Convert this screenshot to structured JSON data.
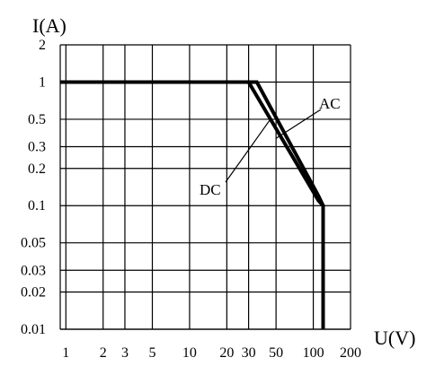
{
  "chart_data": {
    "type": "line",
    "title": "",
    "xlabel": "U(V)",
    "ylabel": "I(A)",
    "x_scale": "log",
    "y_scale": "log",
    "xlim": [
      0.9,
      200
    ],
    "ylim": [
      0.01,
      2
    ],
    "grid": true,
    "x_ticks": [
      1,
      2,
      3,
      5,
      10,
      20,
      30,
      50,
      100,
      200
    ],
    "x_tick_labels": [
      "1",
      "2",
      "3",
      "5",
      "10",
      "20",
      "30",
      "50",
      "100",
      "200"
    ],
    "y_ticks": [
      0.01,
      0.02,
      0.03,
      0.05,
      0.1,
      0.2,
      0.3,
      0.5,
      1,
      2
    ],
    "y_tick_labels": [
      "0.01",
      "0.02",
      "0.03",
      "0.05",
      "0.1",
      "0.2",
      "0.3",
      "0.5",
      "1",
      "2"
    ],
    "series": [
      {
        "name": "DC",
        "x": [
          0.9,
          30,
          110,
          120,
          120
        ],
        "y": [
          1,
          1,
          0.11,
          0.1,
          0.01
        ]
      },
      {
        "name": "AC",
        "x": [
          0.9,
          35,
          110,
          120,
          120
        ],
        "y": [
          1,
          1,
          0.12,
          0.1,
          0.01
        ]
      }
    ],
    "annotations": [
      {
        "text": "AC",
        "target_x": 50,
        "target_y": 0.35
      },
      {
        "text": "DC",
        "target_x": 45,
        "target_y": 0.5
      }
    ]
  }
}
